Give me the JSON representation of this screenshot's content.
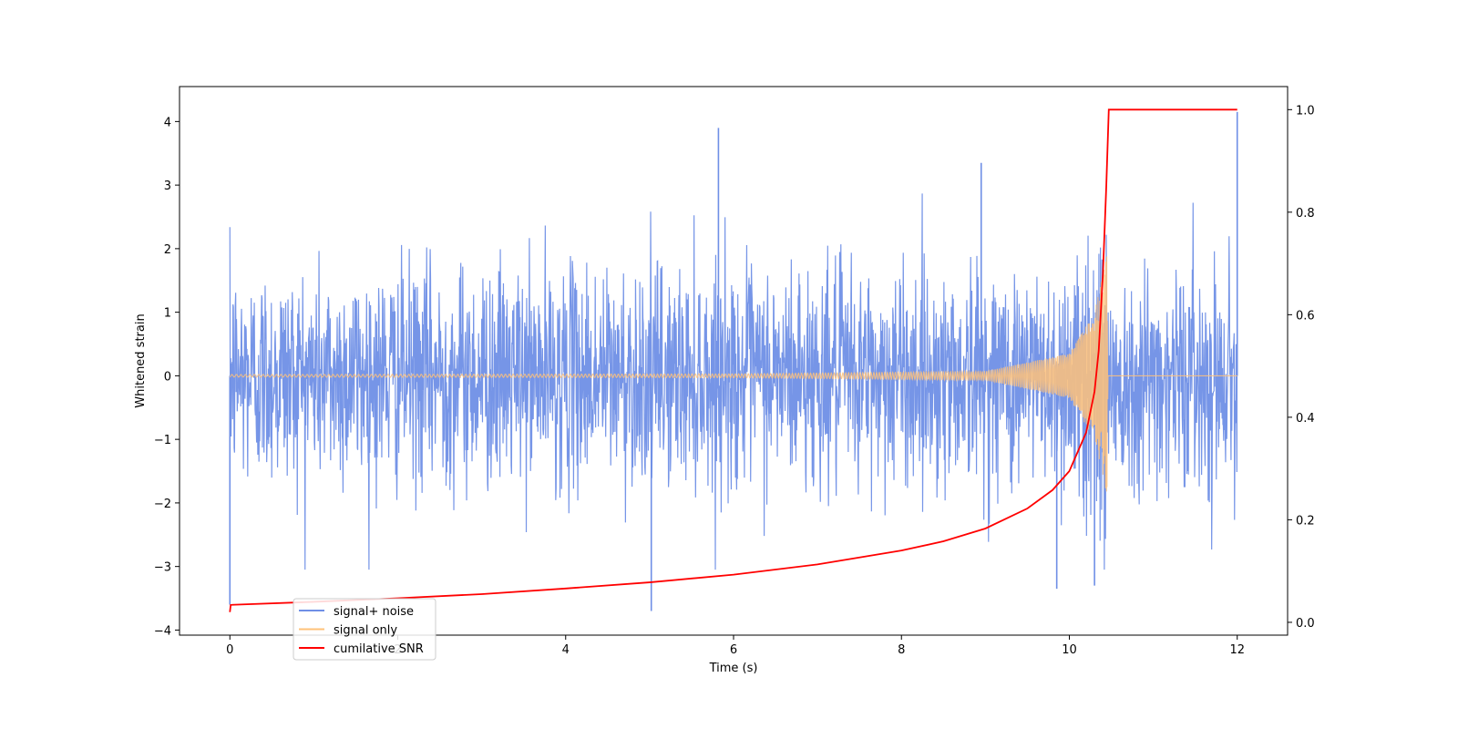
{
  "chart_data": {
    "type": "line",
    "xlabel": "Time (s)",
    "ylabel": "Whitened strain",
    "ylabel_right": "",
    "xlim": [
      -0.6,
      12.6
    ],
    "ylim": [
      -4.08,
      4.55
    ],
    "ylim_right": [
      -0.025,
      1.045
    ],
    "x_ticks": [
      0,
      2,
      4,
      6,
      8,
      10,
      12
    ],
    "x_tick_labels": [
      "0",
      "2",
      "4",
      "6",
      "8",
      "10",
      "12"
    ],
    "y_ticks": [
      -4,
      -3,
      -2,
      -1,
      0,
      1,
      2,
      3,
      4
    ],
    "y_tick_labels": [
      "−4",
      "−3",
      "−2",
      "−1",
      "0",
      "1",
      "2",
      "3",
      "4"
    ],
    "y_right_ticks": [
      0.0,
      0.2,
      0.4,
      0.6,
      0.8,
      1.0
    ],
    "y_right_tick_labels": [
      "0.0",
      "0.2",
      "0.4",
      "0.6",
      "0.8",
      "1.0"
    ],
    "grid": false,
    "legend_position": "lower-left",
    "legend": [
      {
        "label": "signal+ noise",
        "color": "#6f8fe6"
      },
      {
        "label": "signal only",
        "color": "#ffc27a"
      },
      {
        "label": "cumilative SNR",
        "color": "#ff0000"
      }
    ],
    "series": [
      {
        "name": "signal+ noise",
        "axis": "left",
        "color": "#6f8fe6",
        "x_range": [
          0,
          12
        ],
        "noise_std": 0.85,
        "typical_range": [
          -2.3,
          2.4
        ],
        "notable_peaks": [
          {
            "x": 0.0,
            "y": -3.6
          },
          {
            "x": 5.02,
            "y": -3.7
          },
          {
            "x": 5.82,
            "y": 3.9
          },
          {
            "x": 8.95,
            "y": 3.35
          },
          {
            "x": 9.85,
            "y": -3.35
          },
          {
            "x": 10.3,
            "y": -3.3
          },
          {
            "x": 12.0,
            "y": 4.15
          }
        ]
      },
      {
        "name": "signal only",
        "axis": "left",
        "color": "#ffc27a",
        "x_range": [
          0,
          12
        ],
        "description_points": [
          {
            "x": 0.0,
            "amplitude": 0.02
          },
          {
            "x": 6.0,
            "amplitude": 0.03
          },
          {
            "x": 9.0,
            "amplitude": 0.07
          },
          {
            "x": 10.0,
            "amplitude": 0.35
          },
          {
            "x": 10.3,
            "amplitude": 1.0
          },
          {
            "x": 10.45,
            "amplitude": 1.9
          },
          {
            "x": 10.46,
            "amplitude": 0.0
          },
          {
            "x": 12.0,
            "amplitude": 0.0
          }
        ]
      },
      {
        "name": "cumilative SNR",
        "axis": "right",
        "color": "#ff0000",
        "x": [
          0.0,
          0.01,
          1,
          2,
          3,
          4,
          5,
          6,
          7,
          8,
          8.5,
          9,
          9.5,
          9.8,
          10.0,
          10.2,
          10.3,
          10.35,
          10.4,
          10.44,
          10.47,
          12.0
        ],
        "y": [
          0.02,
          0.034,
          0.04,
          0.047,
          0.055,
          0.066,
          0.078,
          0.093,
          0.113,
          0.14,
          0.158,
          0.183,
          0.222,
          0.258,
          0.295,
          0.37,
          0.45,
          0.53,
          0.68,
          0.85,
          1.0,
          1.0
        ]
      }
    ]
  }
}
